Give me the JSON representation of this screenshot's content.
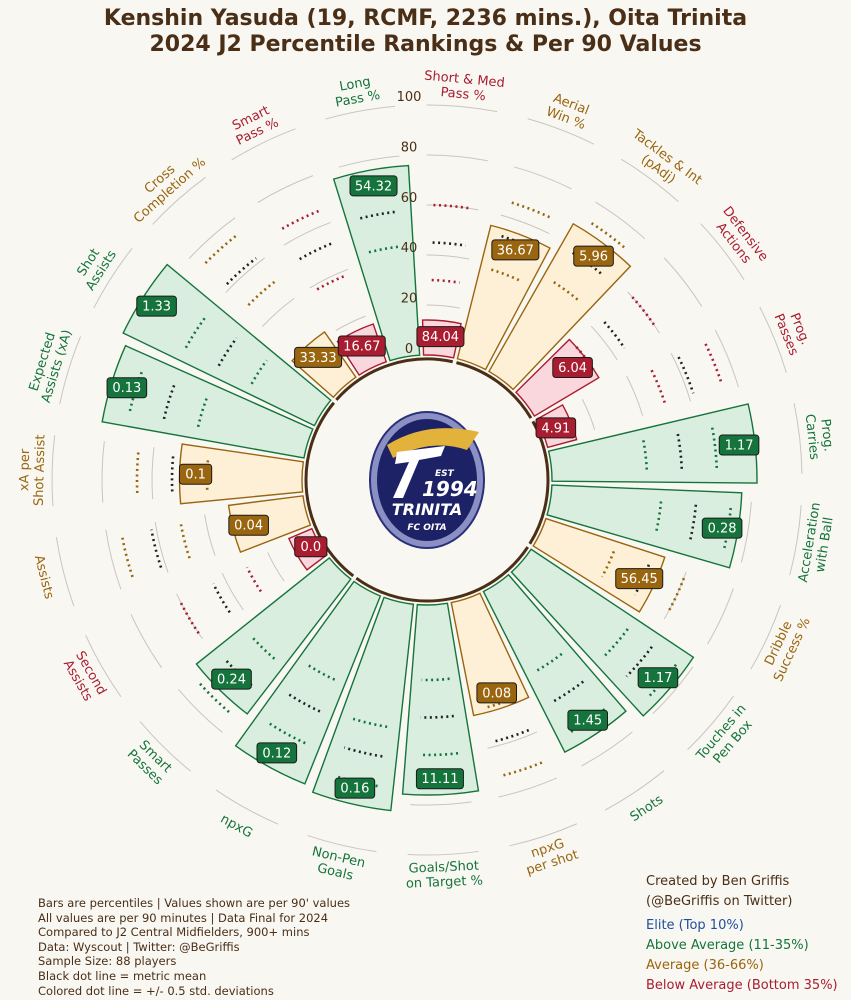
{
  "header": {
    "title_line1": "Kenshin Yasuda (19, RCMF, 2236 mins.), Oita Trinita",
    "title_line2": "2024 J2 Percentile Rankings & Per 90 Values"
  },
  "logo": {
    "est_text": "EST",
    "year_text": "1994",
    "name_text": "TRINITA",
    "sub_text": "FC OITA"
  },
  "footer": {
    "notes": [
      "Bars are percentiles | Values shown are per 90' values",
      "All values are per 90 minutes | Data Final for 2024",
      "Compared to J2 Central Midfielders, 900+ mins",
      "Data: Wyscout | Twitter: @BeGriffis",
      "Sample Size: 88 players",
      "Black dot line = metric mean",
      "Colored dot line = +/- 0.5 std. deviations"
    ],
    "credit_line1": "Created by Ben Griffis",
    "credit_line2": "(@BeGriffis on Twitter)",
    "legend": [
      {
        "label": "Elite (Top 10%)",
        "color": "#1f4e9c"
      },
      {
        "label": "Above Average (11-35%)",
        "color": "#15743c"
      },
      {
        "label": "Average (36-66%)",
        "color": "#99650f"
      },
      {
        "label": "Below Average (Bottom 35%)",
        "color": "#a81d30"
      }
    ]
  },
  "colors": {
    "elite": "#1f4e9c",
    "above": "#15743c",
    "average": "#99650f",
    "below": "#a81d30",
    "text": "#4a2e16"
  },
  "chart_data": {
    "type": "radial bar",
    "radial_ticks": [
      "0",
      "20",
      "40",
      "60",
      "80",
      "100"
    ],
    "rlim": [
      0,
      100
    ],
    "metrics": [
      {
        "label": "Aerial\nWin %",
        "percentile": 55,
        "value": "36.67",
        "tier": "average"
      },
      {
        "label": "Tackles & Int\n(pAdj)",
        "percentile": 68,
        "value": "5.96",
        "tier": "average"
      },
      {
        "label": "Defensive\nActions",
        "percentile": 30,
        "value": "6.04",
        "tier": "below"
      },
      {
        "label": "Prog.\nPasses",
        "percentile": 12,
        "value": "4.91",
        "tier": "below"
      },
      {
        "label": "Prog.\nCarries",
        "percentile": 82,
        "value": "1.17",
        "tier": "above"
      },
      {
        "label": "Acceleration\nwith Ball",
        "percentile": 76,
        "value": "0.28",
        "tier": "above"
      },
      {
        "label": "Dribble\nSuccess %",
        "percentile": 50,
        "value": "56.45",
        "tier": "average"
      },
      {
        "label": "Touches in\nPen Box",
        "percentile": 78,
        "value": "1.17",
        "tier": "above"
      },
      {
        "label": "Shots",
        "percentile": 72,
        "value": "1.45",
        "tier": "above"
      },
      {
        "label": "npxG\nper shot",
        "percentile": 46,
        "value": "0.08",
        "tier": "average"
      },
      {
        "label": "Goals/Shot\non Target %",
        "percentile": 76,
        "value": "11.11",
        "tier": "above"
      },
      {
        "label": "Non-Pen\nGoals",
        "percentile": 83,
        "value": "0.16",
        "tier": "above"
      },
      {
        "label": "npxG",
        "percentile": 81,
        "value": "0.12",
        "tier": "above"
      },
      {
        "label": "Smart\nPasses",
        "percentile": 68,
        "value": "0.24",
        "tier": "above"
      },
      {
        "label": "Second\nAssists",
        "percentile": 10,
        "value": "0.0",
        "tier": "below"
      },
      {
        "label": "Assists",
        "percentile": 30,
        "value": "0.04",
        "tier": "average"
      },
      {
        "label": "xA per\nShot Assist",
        "percentile": 49,
        "value": "0.1",
        "tier": "average"
      },
      {
        "label": "Expected\nAssists (xA)",
        "percentile": 82,
        "value": "0.13",
        "tier": "above"
      },
      {
        "label": "Shot\nAssists",
        "percentile": 85,
        "value": "1.33",
        "tier": "above"
      },
      {
        "label": "Cross\nCompletion %",
        "percentile": 22,
        "value": "33.33",
        "tier": "average"
      },
      {
        "label": "Smart\nPass %",
        "percentile": 16,
        "value": "16.67",
        "tier": "below"
      },
      {
        "label": "Long\nPass %",
        "percentile": 76,
        "value": "54.32",
        "tier": "above"
      },
      {
        "label": "Short & Med\nPass %",
        "percentile": 14,
        "value": "84.04",
        "tier": "below"
      }
    ]
  }
}
